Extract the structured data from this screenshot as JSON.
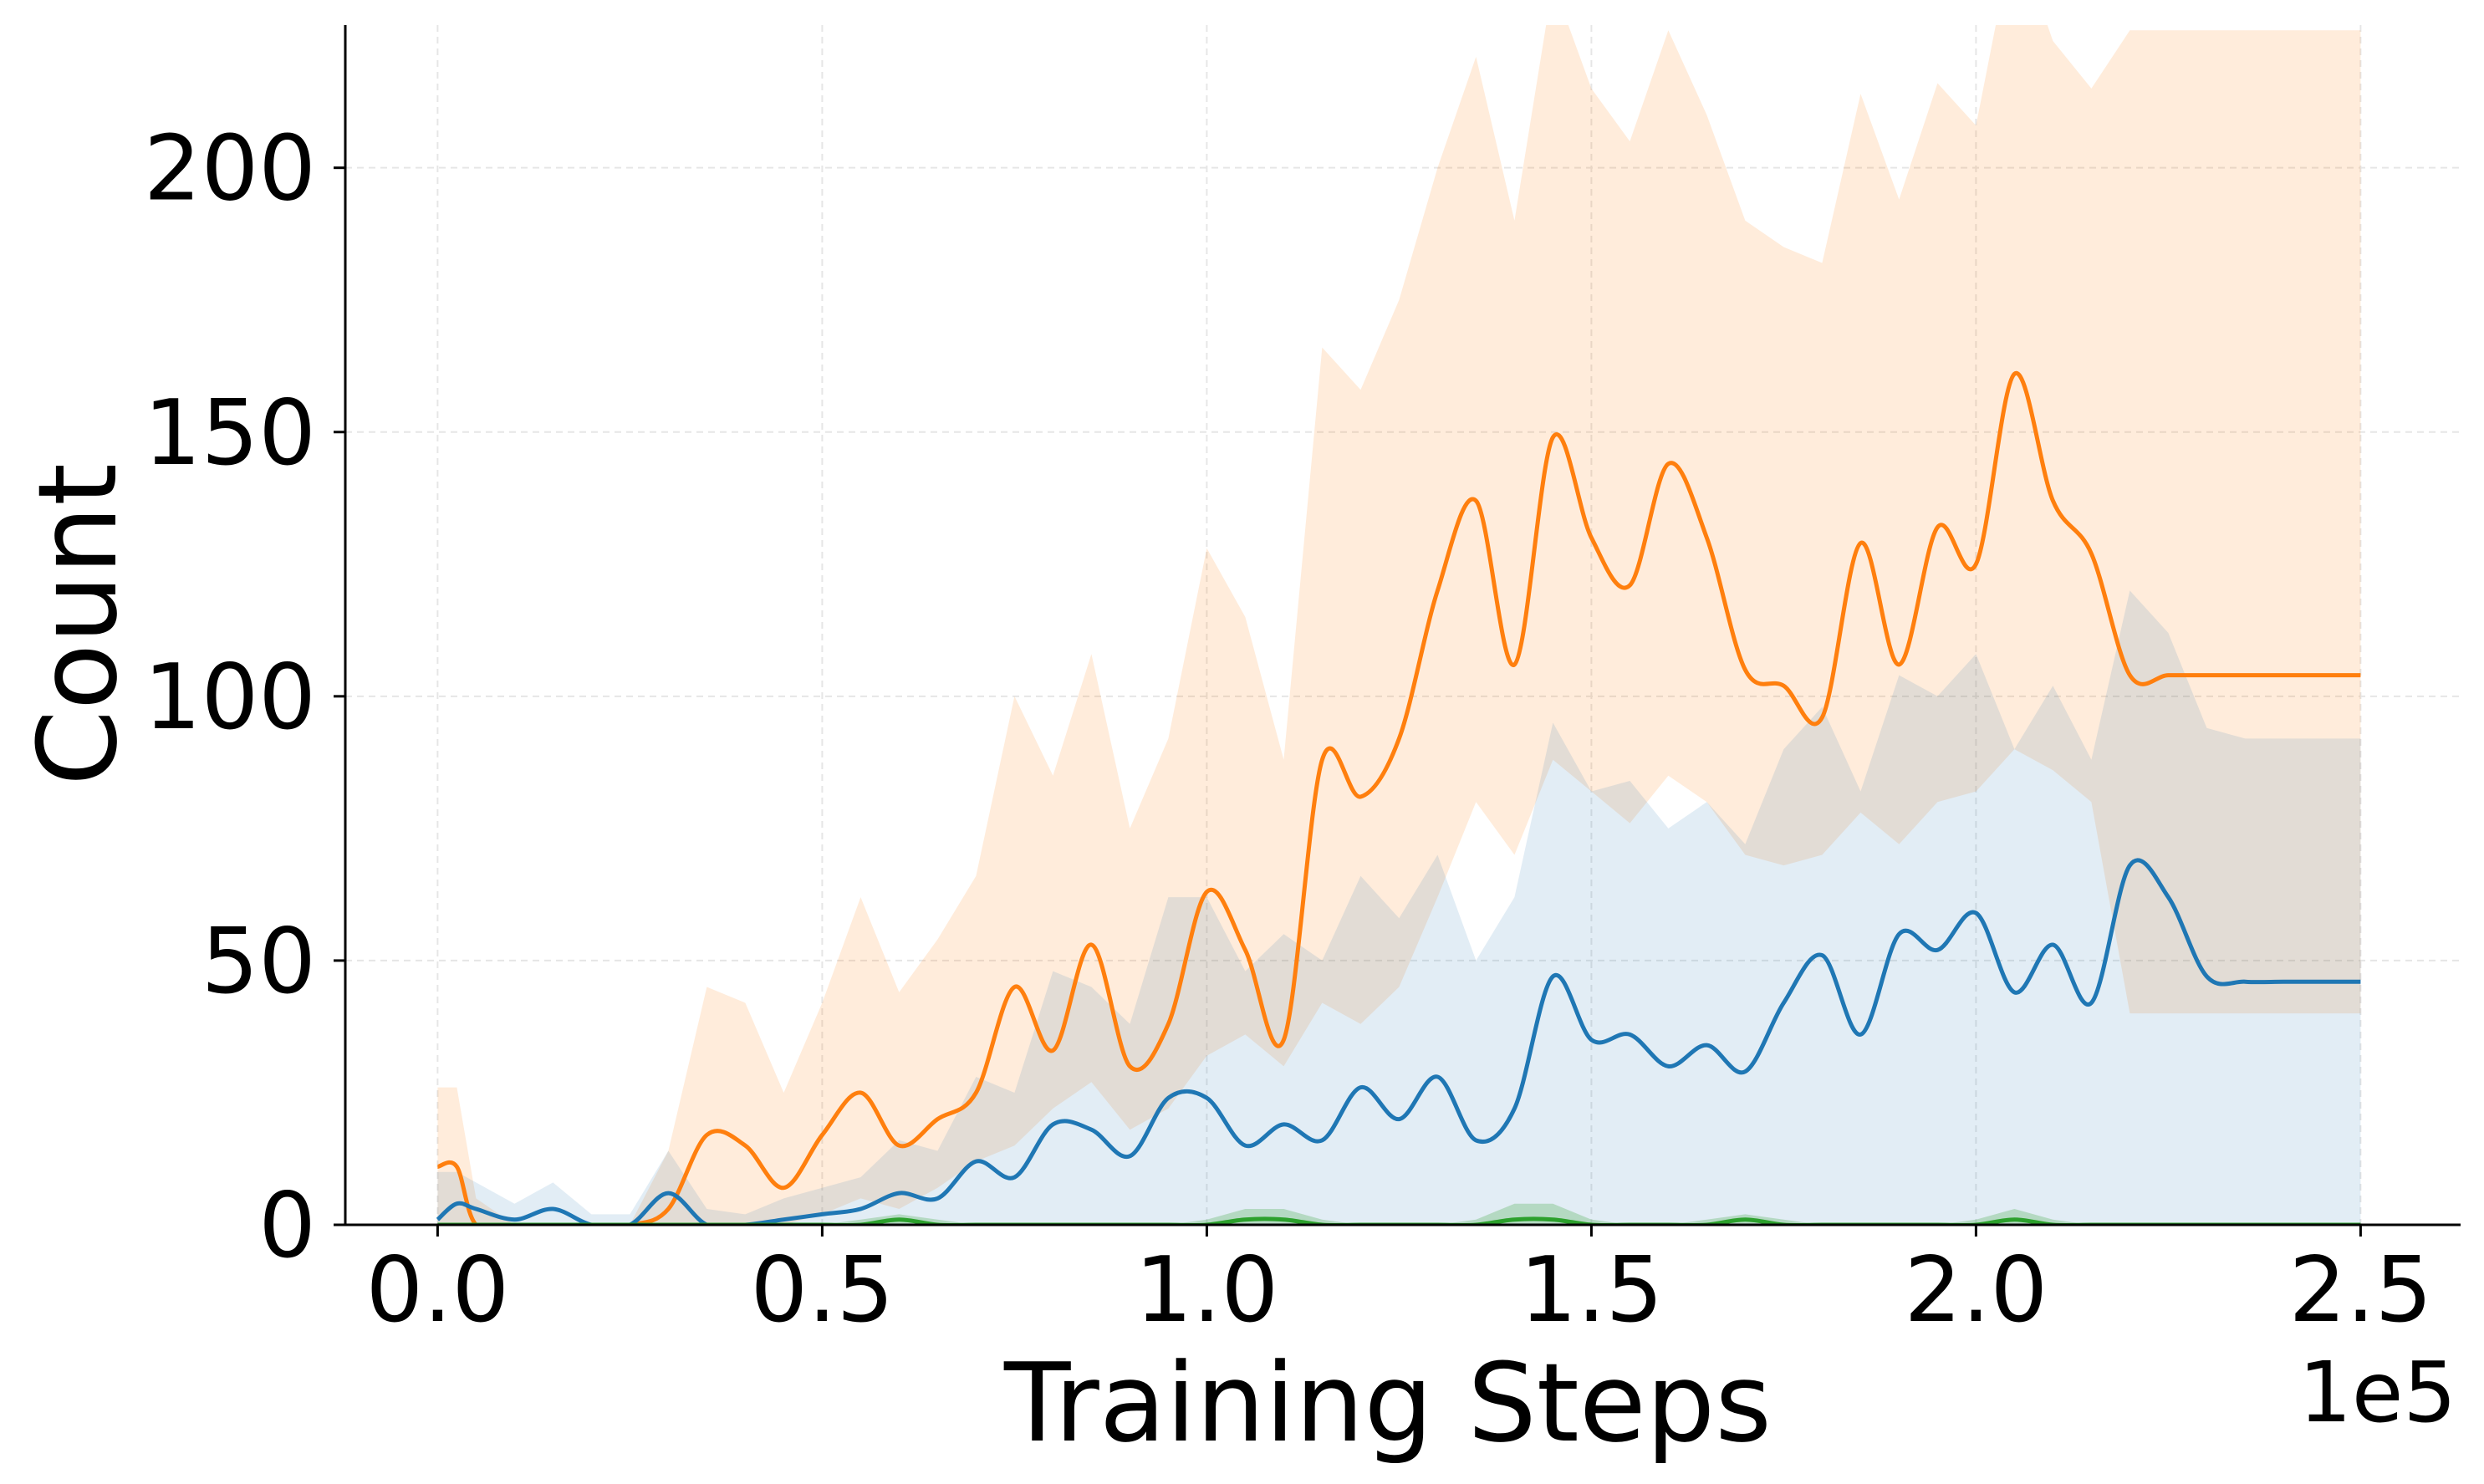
{
  "chart_data": {
    "type": "line",
    "title": "",
    "xlabel": "Training Steps",
    "ylabel": "Count",
    "x_offset_label": "1e5",
    "xlim": [
      -0.12,
      2.63
    ],
    "ylim": [
      0,
      227
    ],
    "xticks": [
      "0.0",
      "0.5",
      "1.0",
      "1.5",
      "2.0",
      "2.5"
    ],
    "yticks": [
      "0",
      "50",
      "100",
      "150",
      "200"
    ],
    "grid": true,
    "legend": "none",
    "x": [
      0.0,
      0.025,
      0.05,
      0.1,
      0.15,
      0.2,
      0.25,
      0.3,
      0.35,
      0.4,
      0.45,
      0.5,
      0.55,
      0.6,
      0.65,
      0.7,
      0.75,
      0.8,
      0.85,
      0.9,
      0.95,
      1.0,
      1.05,
      1.1,
      1.15,
      1.2,
      1.25,
      1.3,
      1.35,
      1.4,
      1.45,
      1.5,
      1.55,
      1.6,
      1.65,
      1.7,
      1.75,
      1.8,
      1.85,
      1.9,
      1.95,
      2.0,
      2.05,
      2.1,
      2.15,
      2.2,
      2.25,
      2.3,
      2.35,
      2.4,
      2.45,
      2.5
    ],
    "series": [
      {
        "color": "#ff7f0e",
        "mean": [
          11,
          11,
          0,
          0,
          0,
          0,
          0,
          3,
          17,
          15,
          7,
          17,
          25,
          15,
          20,
          25,
          45,
          33,
          53,
          30,
          38,
          63,
          52,
          35,
          88,
          81,
          92,
          120,
          137,
          106,
          149,
          130,
          121,
          144,
          130,
          105,
          102,
          96,
          129,
          106,
          132,
          125,
          161,
          137,
          127,
          104,
          104,
          104,
          104,
          104,
          104,
          104
        ],
        "lower": [
          0,
          0,
          0,
          0,
          0,
          0,
          0,
          0,
          0,
          0,
          0,
          2,
          5,
          3,
          7,
          12,
          15,
          22,
          27,
          18,
          22,
          32,
          36,
          30,
          42,
          38,
          45,
          62,
          80,
          70,
          88,
          82,
          76,
          85,
          80,
          70,
          68,
          70,
          78,
          72,
          80,
          82,
          90,
          86,
          80,
          40,
          40,
          40,
          40,
          40,
          40,
          40
        ],
        "upper": [
          26,
          26,
          5,
          0,
          0,
          0,
          0,
          14,
          45,
          42,
          25,
          42,
          62,
          44,
          54,
          66,
          100,
          85,
          108,
          75,
          92,
          128,
          115,
          88,
          166,
          158,
          175,
          200,
          221,
          190,
          235,
          215,
          205,
          226,
          210,
          190,
          185,
          182,
          214,
          194,
          216,
          208,
          245,
          224,
          215,
          226,
          226,
          226,
          226,
          226,
          226,
          226
        ]
      },
      {
        "color": "#1f77b4",
        "mean": [
          1,
          4,
          3,
          1,
          3,
          0,
          0,
          6,
          0,
          0,
          1,
          2,
          3,
          6,
          5,
          12,
          9,
          19,
          18,
          13,
          24,
          24,
          15,
          19,
          16,
          26,
          20,
          28,
          16,
          22,
          47,
          35,
          36,
          30,
          34,
          29,
          42,
          51,
          36,
          55,
          52,
          59,
          44,
          53,
          42,
          68,
          62,
          47,
          46,
          46,
          46,
          46
        ],
        "lower": [
          0,
          0,
          0,
          0,
          0,
          0,
          0,
          0,
          0,
          0,
          0,
          0,
          0,
          0,
          0,
          0,
          0,
          0,
          0,
          0,
          0,
          0,
          0,
          0,
          0,
          0,
          0,
          0,
          0,
          0,
          0,
          0,
          0,
          0,
          0,
          0,
          0,
          0,
          0,
          0,
          0,
          0,
          0,
          0,
          0,
          0,
          0,
          0,
          0,
          0,
          0,
          0
        ],
        "upper": [
          10,
          10,
          8,
          4,
          8,
          2,
          2,
          14,
          3,
          2,
          5,
          7,
          9,
          16,
          14,
          28,
          25,
          48,
          45,
          38,
          62,
          62,
          48,
          55,
          50,
          66,
          58,
          70,
          50,
          62,
          95,
          82,
          84,
          75,
          80,
          72,
          90,
          98,
          82,
          104,
          100,
          108,
          90,
          102,
          88,
          120,
          112,
          94,
          92,
          92,
          92,
          92
        ]
      },
      {
        "color": "#2ca02c",
        "mean": [
          0,
          0,
          0,
          0,
          0,
          0,
          0,
          0,
          0,
          0,
          0,
          0,
          0,
          1,
          0,
          0,
          0,
          0,
          0,
          0,
          0,
          0,
          1,
          1,
          0,
          0,
          0,
          0,
          0,
          1,
          1,
          0,
          0,
          0,
          0,
          1,
          0,
          0,
          0,
          0,
          0,
          0,
          1,
          0,
          0,
          0,
          0,
          0,
          0,
          0,
          0,
          0
        ],
        "lower": [
          0,
          0,
          0,
          0,
          0,
          0,
          0,
          0,
          0,
          0,
          0,
          0,
          0,
          0,
          0,
          0,
          0,
          0,
          0,
          0,
          0,
          0,
          0,
          0,
          0,
          0,
          0,
          0,
          0,
          0,
          0,
          0,
          0,
          0,
          0,
          0,
          0,
          0,
          0,
          0,
          0,
          0,
          0,
          0,
          0,
          0,
          0,
          0,
          0,
          0,
          0,
          0
        ],
        "upper": [
          0,
          0,
          0,
          0,
          0,
          0,
          0,
          0,
          0,
          0,
          0,
          0,
          1,
          2,
          1,
          0,
          0,
          0,
          0,
          0,
          0,
          1,
          3,
          3,
          1,
          0,
          0,
          0,
          1,
          4,
          4,
          1,
          0,
          0,
          1,
          2,
          1,
          0,
          0,
          0,
          0,
          1,
          3,
          1,
          0,
          0,
          0,
          0,
          0,
          0,
          0,
          0
        ]
      }
    ]
  }
}
